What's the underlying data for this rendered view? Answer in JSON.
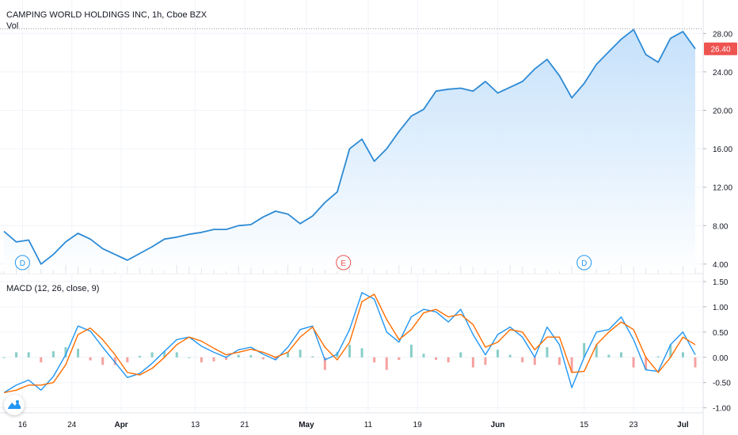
{
  "header": {
    "title": "CAMPING WORLD HOLDINGS INC, 1h, Cboe BZX",
    "volume_label": "Vol",
    "macd_label": "MACD (12, 26, close, 9)"
  },
  "price_badge": {
    "value": "26.40",
    "color": "#ef5350"
  },
  "event_markers": [
    {
      "letter": "D",
      "date": "Mar 16",
      "color": "#2196f3"
    },
    {
      "letter": "E",
      "date": "May 7",
      "color": "#ef5350"
    },
    {
      "letter": "D",
      "date": "Jun 15",
      "color": "#2196f3"
    }
  ],
  "colors": {
    "price_line": "#2d8ad4",
    "area_top": "#bcdcfa",
    "macd_line": "#2196f3",
    "signal_line": "#ff6d00",
    "hist_positive": "#26a69a",
    "hist_negative": "#ef5350",
    "grid": "#f0f3fa",
    "last_price_line": "#9598a1"
  },
  "logo": {
    "name": "tradingview-logo-icon"
  },
  "chart_data": [
    {
      "type": "area",
      "title": "CAMPING WORLD HOLDINGS INC, 1h, Cboe BZX",
      "price_axis_ticks": [
        4.0,
        8.0,
        12.0,
        16.0,
        20.0,
        24.0,
        28.0
      ],
      "price_axis_tick_labels": [
        "4.00",
        "8.00",
        "12.00",
        "16.00",
        "20.00",
        "24.00",
        "28.00"
      ],
      "ylim": [
        3.0,
        30.0
      ],
      "x_axis_tick_labels": [
        "16",
        "24",
        "Apr",
        "13",
        "21",
        "May",
        "11",
        "19",
        "Jun",
        "15",
        "23",
        "Jul"
      ],
      "x": [
        "Mar 13",
        "Mar 15",
        "Mar 17",
        "Mar 19",
        "Mar 21",
        "Mar 23",
        "Mar 25",
        "Mar 27",
        "Mar 29",
        "Mar 31",
        "Apr 2",
        "Apr 4",
        "Apr 6",
        "Apr 8",
        "Apr 10",
        "Apr 12",
        "Apr 14",
        "Apr 16",
        "Apr 18",
        "Apr 20",
        "Apr 22",
        "Apr 24",
        "Apr 26",
        "Apr 28",
        "Apr 30",
        "May 2",
        "May 4",
        "May 6",
        "May 8",
        "May 10",
        "May 12",
        "May 14",
        "May 16",
        "May 18",
        "May 20",
        "May 22",
        "May 24",
        "May 26",
        "May 28",
        "May 30",
        "Jun 1",
        "Jun 3",
        "Jun 5",
        "Jun 7",
        "Jun 9",
        "Jun 11",
        "Jun 13",
        "Jun 15",
        "Jun 17",
        "Jun 19",
        "Jun 21",
        "Jun 23",
        "Jun 25",
        "Jun 27",
        "Jun 29",
        "Jul 1",
        "Jul 3"
      ],
      "values": [
        7.4,
        6.3,
        6.5,
        4.0,
        5.0,
        6.3,
        7.2,
        6.6,
        5.6,
        5.0,
        4.4,
        5.1,
        5.8,
        6.6,
        6.8,
        7.1,
        7.3,
        7.6,
        7.6,
        8.0,
        8.1,
        8.9,
        9.5,
        9.2,
        8.2,
        9.0,
        10.4,
        11.5,
        16.0,
        17.0,
        14.7,
        16.0,
        17.8,
        19.4,
        20.1,
        22.0,
        22.2,
        22.3,
        22.0,
        23.0,
        21.8,
        22.4,
        23.0,
        24.3,
        25.3,
        23.6,
        21.3,
        22.8,
        24.8,
        26.1,
        27.4,
        28.4,
        25.8,
        25.0,
        27.5,
        28.2,
        26.4
      ],
      "last_value": 26.4
    },
    {
      "type": "line",
      "title": "MACD (12, 26, close, 9)",
      "price_axis_ticks": [
        -1.0,
        -0.5,
        0.0,
        0.5,
        1.0,
        1.5
      ],
      "price_axis_tick_labels": [
        "-1.00",
        "-0.50",
        "0.00",
        "0.50",
        "1.00",
        "1.50"
      ],
      "ylim": [
        -1.1,
        1.5
      ],
      "series": [
        {
          "values": [
            -0.7,
            -0.55,
            -0.45,
            -0.65,
            -0.38,
            0.05,
            0.62,
            0.52,
            0.2,
            -0.1,
            -0.4,
            -0.32,
            -0.12,
            0.12,
            0.35,
            0.4,
            0.22,
            0.1,
            0.0,
            0.15,
            0.2,
            0.06,
            -0.05,
            0.2,
            0.55,
            0.62,
            -0.05,
            0.06,
            0.55,
            1.28,
            1.15,
            0.5,
            0.3,
            0.8,
            0.95,
            0.9,
            0.7,
            0.95,
            0.45,
            0.05,
            0.45,
            0.6,
            0.4,
            0.0,
            0.6,
            0.25,
            -0.6,
            0.0,
            0.5,
            0.55,
            0.8,
            0.35,
            -0.25,
            -0.28,
            0.25,
            0.5,
            0.05
          ]
        },
        {
          "values": [
            -0.7,
            -0.65,
            -0.55,
            -0.55,
            -0.5,
            -0.15,
            0.45,
            0.58,
            0.35,
            0.05,
            -0.3,
            -0.35,
            -0.22,
            0.0,
            0.25,
            0.4,
            0.32,
            0.18,
            0.05,
            0.1,
            0.16,
            0.1,
            0.0,
            0.1,
            0.4,
            0.6,
            0.2,
            -0.05,
            0.3,
            1.1,
            1.25,
            0.75,
            0.35,
            0.55,
            0.88,
            0.95,
            0.8,
            0.85,
            0.65,
            0.2,
            0.3,
            0.55,
            0.5,
            0.15,
            0.4,
            0.4,
            -0.3,
            -0.28,
            0.25,
            0.5,
            0.7,
            0.55,
            0.0,
            -0.3,
            0.0,
            0.4,
            0.25
          ]
        }
      ],
      "histogram": [
        0.0,
        0.1,
        0.1,
        -0.1,
        0.12,
        0.2,
        0.17,
        -0.06,
        -0.15,
        -0.15,
        -0.1,
        0.03,
        0.1,
        0.12,
        0.1,
        0.0,
        -0.1,
        -0.08,
        -0.05,
        0.05,
        0.04,
        -0.04,
        -0.05,
        0.1,
        0.15,
        0.02,
        -0.25,
        0.11,
        0.25,
        0.18,
        -0.1,
        -0.25,
        -0.05,
        0.25,
        0.07,
        -0.05,
        -0.1,
        0.1,
        -0.2,
        -0.15,
        0.15,
        0.05,
        -0.1,
        -0.15,
        0.2,
        -0.15,
        -0.3,
        0.28,
        0.25,
        0.05,
        0.1,
        -0.2,
        -0.25,
        0.02,
        0.25,
        0.1,
        -0.2
      ]
    }
  ]
}
